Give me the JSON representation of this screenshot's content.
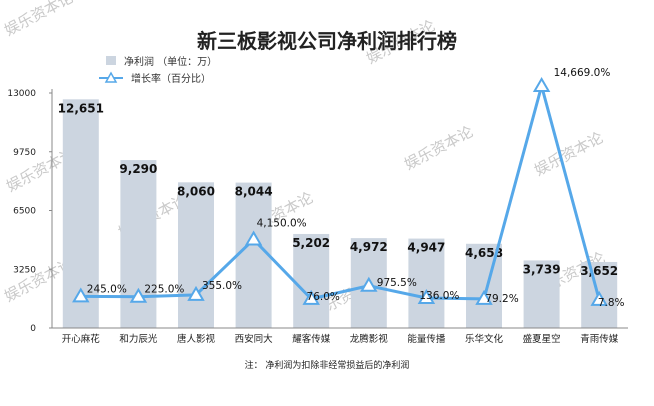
{
  "title": "新三板影视公司净利润排行榜",
  "legend": {
    "bar_label": "净利润  （单位：万）",
    "line_label": "增长率（百分比）"
  },
  "note": "注：  净利润为扣除非经常损益后的净利润",
  "watermark": "娱乐资本论",
  "colors": {
    "bar": "#ccd5e0",
    "line": "#56a8e9",
    "axis": "#888888",
    "grid": "#e6e6e6"
  },
  "chart_data": {
    "type": "bar",
    "categories": [
      "开心麻花",
      "和力辰光",
      "唐人影视",
      "西安同大",
      "耀客传媒",
      "龙腾影视",
      "能量传播",
      "乐华文化",
      "盛夏星空",
      "青雨传媒"
    ],
    "series": [
      {
        "name": "净利润  （单位：万）",
        "type": "bar",
        "values": [
          12651,
          9290,
          8060,
          8044,
          5202,
          4972,
          4947,
          4658,
          3739,
          3652
        ],
        "labels": [
          "12,651",
          "9,290",
          "8,060",
          "8,044",
          "5,202",
          "4,972",
          "4,947",
          "4,658",
          "3,739",
          "3,652"
        ]
      },
      {
        "name": "增长率（百分比）",
        "type": "line",
        "values": [
          245.0,
          225.0,
          355.0,
          4150.0,
          76.0,
          975.5,
          136.0,
          79.2,
          14669.0,
          7.8
        ],
        "labels": [
          "245.0%",
          "225.0%",
          "355.0%",
          "4,150.0%",
          "76.0%",
          "975.5%",
          "136.0%",
          "79.2%",
          "14,669.0%",
          "7.8%"
        ]
      }
    ],
    "y_ticks": [
      "0",
      "3250",
      "6500",
      "9750",
      "13000"
    ],
    "ylim": [
      0,
      13000
    ],
    "grid": false,
    "legend_position": "top-left"
  }
}
